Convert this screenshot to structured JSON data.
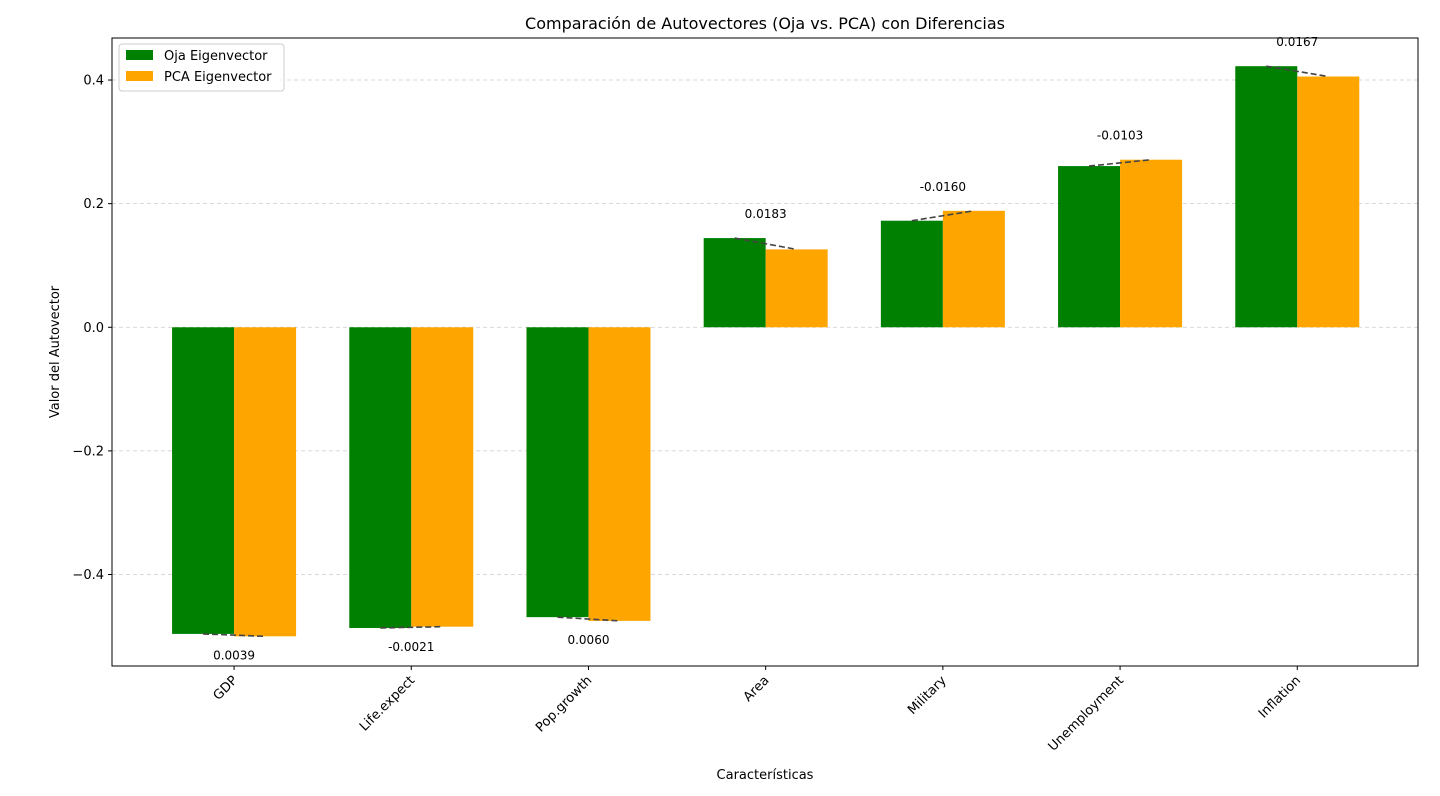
{
  "chart_data": {
    "type": "bar",
    "title": "Comparación de Autovectores (Oja vs. PCA) con Diferencias",
    "xlabel": "Características",
    "ylabel": "Valor del Autovector",
    "categories": [
      "GDP",
      "Life.expect",
      "Pop.growth",
      "Area",
      "Military",
      "Unemployment",
      "Inflation"
    ],
    "series": [
      {
        "name": "Oja Eigenvector",
        "color": "#008000",
        "values": [
          -0.4961,
          -0.4865,
          -0.469,
          0.1443,
          0.1724,
          0.2608,
          0.4224
        ]
      },
      {
        "name": "PCA Eigenvector",
        "color": "#FFA500",
        "values": [
          -0.5,
          -0.4844,
          -0.475,
          0.126,
          0.1884,
          0.2711,
          0.4057
        ]
      }
    ],
    "difference_labels": [
      "0.0039",
      "-0.0021",
      "0.0060",
      "0.0183",
      "-0.0160",
      "-0.0103",
      "0.0167"
    ],
    "ylim": [
      -0.548,
      0.468
    ],
    "yticks": [
      -0.4,
      -0.2,
      0.0,
      0.2,
      0.4
    ],
    "ytick_labels": [
      "−0.4",
      "−0.2",
      "0.0",
      "0.2",
      "0.4"
    ],
    "grid": "y-dashed",
    "legend_position": "top-left"
  }
}
